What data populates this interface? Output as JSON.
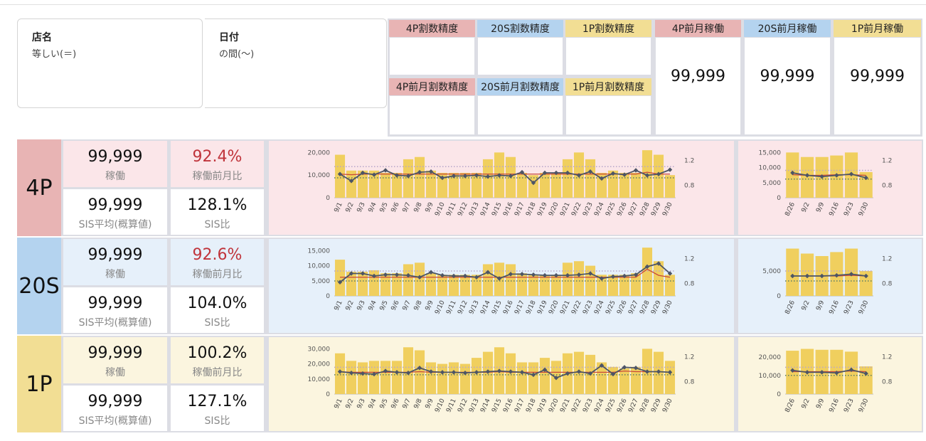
{
  "filters": [
    {
      "title": "店名",
      "sub": "等しい(＝)"
    },
    {
      "title": "日付",
      "sub": "の間(〜)"
    }
  ],
  "kpi_headers": {
    "p4_acc": "4P割数精度",
    "s20_acc": "20S割数精度",
    "p1_acc": "1P割数精度",
    "p4_prev_acc": "4P前月割数精度",
    "s20_prev_acc": "20S前月割数精度",
    "p1_prev_acc": "1P前月割数精度",
    "p4_prev_op": "4P前月稼働",
    "s20_prev_op": "20S前月稼働",
    "p1_prev_op": "1P前月稼働"
  },
  "kpi_values": {
    "p4_prev_op": "99,999",
    "s20_prev_op": "99,999",
    "p1_prev_op": "99,999"
  },
  "colors": {
    "p4": "#e8b4b4",
    "s20": "#b4d3ef",
    "p1": "#f2de94",
    "p4_bg": "#fbe6e9",
    "s20_bg": "#e6f0fa",
    "p1_bg": "#fbf5df",
    "bar": "#f0cf5e",
    "line": "#4d5566",
    "redline": "#c8483a"
  },
  "rows": [
    {
      "key": "p4",
      "label": "4P",
      "op_value": "99,999",
      "op_label": "稼働",
      "mom_value": "92.4%",
      "mom_label": "稼働前月比",
      "mom_red": true,
      "sis_value": "99,999",
      "sis_label": "SIS平均(概算値)",
      "sisr_value": "128.1%",
      "sisr_label": "SIS比"
    },
    {
      "key": "s20",
      "label": "20S",
      "op_value": "99,999",
      "op_label": "稼働",
      "mom_value": "92.6%",
      "mom_label": "稼働前月比",
      "mom_red": true,
      "sis_value": "99,999",
      "sis_label": "SIS平均(概算値)",
      "sisr_value": "104.0%",
      "sisr_label": "SIS比"
    },
    {
      "key": "p1",
      "label": "1P",
      "op_value": "99,999",
      "op_label": "稼働",
      "mom_value": "100.2%",
      "mom_label": "稼働前月比",
      "mom_red": false,
      "sis_value": "99,999",
      "sis_label": "SIS平均(概算値)",
      "sisr_value": "127.1%",
      "sisr_label": "SIS比"
    }
  ],
  "chart_data": [
    {
      "id": "p4_daily",
      "type": "bar",
      "categories": [
        "9/1",
        "9/2",
        "9/3",
        "9/4",
        "9/5",
        "9/6",
        "9/7",
        "9/8",
        "9/9",
        "9/10",
        "9/11",
        "9/12",
        "9/13",
        "9/14",
        "9/15",
        "9/16",
        "9/17",
        "9/18",
        "9/19",
        "9/20",
        "9/21",
        "9/22",
        "9/23",
        "9/24",
        "9/25",
        "9/26",
        "9/27",
        "9/28",
        "9/29",
        "9/30"
      ],
      "values": [
        19000,
        12000,
        12000,
        12000,
        11000,
        11000,
        17000,
        18000,
        12000,
        11000,
        11000,
        11000,
        11000,
        17000,
        20000,
        18000,
        11000,
        10000,
        11000,
        11000,
        17000,
        20000,
        17000,
        11000,
        12000,
        11000,
        11000,
        21000,
        19000,
        10000
      ],
      "ylim": [
        0,
        22000
      ],
      "yticks": [
        0,
        10000,
        20000
      ],
      "y_tick_labels": [
        "0",
        "10,000",
        "20,000"
      ],
      "y2lim": [
        0.6,
        1.4
      ],
      "y2ticks": [
        0.8,
        1.2
      ],
      "y2_tick_labels": [
        "0.8",
        "1.2"
      ],
      "ratio": [
        0.98,
        0.87,
        1.0,
        0.97,
        1.04,
        0.96,
        0.95,
        1.01,
        1.02,
        0.92,
        0.95,
        0.95,
        0.96,
        0.94,
        0.96,
        0.95,
        1.01,
        0.84,
        1.0,
        1.0,
        1.0,
        0.96,
        1.02,
        0.91,
        0.99,
        0.97,
        1.04,
        0.96,
        0.98,
        1.05
      ],
      "avg_line": [
        0.98,
        0.97,
        0.98,
        0.98,
        0.98,
        0.98,
        0.98,
        0.98,
        0.98,
        0.98,
        0.98,
        0.98,
        0.98,
        0.98,
        0.98,
        0.98,
        0.98,
        0.98,
        0.98,
        0.98,
        0.98,
        0.98,
        0.98,
        0.98,
        0.98,
        0.98,
        0.98,
        1.01,
        0.98,
        0.98
      ],
      "ref_upper": 1.1,
      "ref_lower": 0.92
    },
    {
      "id": "p4_weekly",
      "type": "bar",
      "categories": [
        "8/26",
        "9/2",
        "9/9",
        "9/16",
        "9/23",
        "9/30"
      ],
      "values": [
        15000,
        13500,
        13500,
        14000,
        15000,
        8500
      ],
      "ylim": [
        0,
        16500
      ],
      "yticks": [
        0,
        5000,
        10000,
        15000
      ],
      "y_tick_labels": [
        "0",
        "5,000",
        "10,000",
        "15,000"
      ],
      "y2lim": [
        0.6,
        1.4
      ],
      "y2ticks": [
        0.8,
        1.2
      ],
      "y2_tick_labels": [
        "0.8",
        "1.2"
      ],
      "ratio": [
        1.0,
        0.96,
        0.94,
        0.96,
        0.98,
        0.92
      ],
      "avg_line": [
        0.97,
        0.96,
        0.96,
        0.97,
        0.97,
        0.96
      ],
      "ref_upper": 1.04,
      "ref_lower": 0.9
    },
    {
      "id": "s20_daily",
      "type": "bar",
      "categories": [
        "9/1",
        "9/2",
        "9/3",
        "9/4",
        "9/5",
        "9/6",
        "9/7",
        "9/8",
        "9/9",
        "9/10",
        "9/11",
        "9/12",
        "9/13",
        "9/14",
        "9/15",
        "9/16",
        "9/17",
        "9/18",
        "9/19",
        "9/20",
        "9/21",
        "9/22",
        "9/23",
        "9/24",
        "9/25",
        "9/26",
        "9/27",
        "9/28",
        "9/29",
        "9/30"
      ],
      "values": [
        12000,
        8000,
        8000,
        8500,
        7500,
        7500,
        10500,
        11000,
        7500,
        7000,
        7000,
        7000,
        7000,
        10500,
        11000,
        10500,
        7500,
        7000,
        7000,
        7000,
        11000,
        11500,
        10000,
        7000,
        7000,
        7000,
        7500,
        16000,
        11500,
        7000
      ],
      "ylim": [
        0,
        16500
      ],
      "yticks": [
        0,
        5000,
        10000,
        15000
      ],
      "y_tick_labels": [
        "0",
        "5,000",
        "10,000",
        "15,000"
      ],
      "y2lim": [
        0.6,
        1.4
      ],
      "y2ticks": [
        0.8,
        1.2
      ],
      "y2_tick_labels": [
        "0.8",
        "1.2"
      ],
      "ratio": [
        0.82,
        0.96,
        0.96,
        0.92,
        0.94,
        0.94,
        0.93,
        0.9,
        0.98,
        0.93,
        0.92,
        0.92,
        0.9,
        0.98,
        0.88,
        0.95,
        0.95,
        0.94,
        0.93,
        0.93,
        0.93,
        0.94,
        0.96,
        0.88,
        0.91,
        0.92,
        0.94,
        1.07,
        1.12,
        0.96
      ],
      "avg_line": [
        0.9,
        0.9,
        0.9,
        0.9,
        0.9,
        0.9,
        0.9,
        0.9,
        0.9,
        0.9,
        0.9,
        0.9,
        0.9,
        0.9,
        0.9,
        0.9,
        0.9,
        0.9,
        0.9,
        0.9,
        0.9,
        0.9,
        0.9,
        0.9,
        0.9,
        0.9,
        0.9,
        1.03,
        0.93,
        0.9
      ],
      "ref_upper": 1.0,
      "ref_lower": 0.84
    },
    {
      "id": "s20_weekly",
      "type": "bar",
      "categories": [
        "8/26",
        "9/2",
        "9/9",
        "9/16",
        "9/23",
        "9/30"
      ],
      "values": [
        9500,
        8500,
        8000,
        8800,
        9500,
        5000
      ],
      "ylim": [
        0,
        10000
      ],
      "yticks": [
        0,
        5000
      ],
      "y_tick_labels": [
        "0",
        "5,000"
      ],
      "y2lim": [
        0.6,
        1.4
      ],
      "y2ticks": [
        0.8,
        1.2
      ],
      "y2_tick_labels": [
        "0.8",
        "1.2"
      ],
      "ratio": [
        0.92,
        0.92,
        0.92,
        0.93,
        0.95,
        0.92
      ],
      "avg_line": [
        0.92,
        0.92,
        0.92,
        0.92,
        0.93,
        0.92
      ],
      "ref_upper": 1.0,
      "ref_lower": 0.84
    },
    {
      "id": "p1_daily",
      "type": "bar",
      "categories": [
        "9/1",
        "9/2",
        "9/3",
        "9/4",
        "9/5",
        "9/6",
        "9/7",
        "9/8",
        "9/9",
        "9/10",
        "9/11",
        "9/12",
        "9/13",
        "9/14",
        "9/15",
        "9/16",
        "9/17",
        "9/18",
        "9/19",
        "9/20",
        "9/21",
        "9/22",
        "9/23",
        "9/24",
        "9/25",
        "9/26",
        "9/27",
        "9/28",
        "9/29",
        "9/30"
      ],
      "values": [
        27000,
        22000,
        21000,
        22000,
        22000,
        22000,
        31000,
        29000,
        21000,
        20000,
        21000,
        20000,
        24000,
        28000,
        31000,
        27000,
        21000,
        21000,
        24000,
        22000,
        27000,
        28000,
        26000,
        21000,
        18000,
        17000,
        18000,
        30000,
        28000,
        22000
      ],
      "ylim": [
        0,
        33000
      ],
      "yticks": [
        0,
        10000,
        20000,
        30000
      ],
      "y_tick_labels": [
        "0",
        "10,000",
        "20,000",
        "30,000"
      ],
      "y2lim": [
        0.6,
        1.4
      ],
      "y2ticks": [
        0.8,
        1.2
      ],
      "y2_tick_labels": [
        "0.8",
        "1.2"
      ],
      "ratio": [
        0.96,
        0.94,
        0.93,
        0.92,
        0.97,
        0.95,
        0.94,
        1.02,
        0.96,
        0.95,
        0.95,
        0.94,
        0.95,
        0.96,
        0.97,
        0.96,
        0.95,
        0.91,
        0.99,
        0.86,
        0.93,
        0.96,
        0.93,
        1.06,
        0.92,
        1.03,
        1.02,
        0.96,
        0.96,
        0.95
      ],
      "avg_line": [
        0.96,
        0.95,
        0.95,
        0.95,
        0.95,
        0.95,
        0.95,
        0.96,
        0.95,
        0.95,
        0.95,
        0.95,
        0.95,
        0.95,
        0.96,
        0.95,
        0.95,
        0.95,
        0.95,
        0.95,
        0.95,
        0.95,
        0.95,
        0.95,
        0.95,
        0.97,
        0.96,
        0.96,
        0.96,
        0.95
      ],
      "ref_upper": 1.03,
      "ref_lower": 0.91
    },
    {
      "id": "p1_weekly",
      "type": "bar",
      "categories": [
        "8/26",
        "9/2",
        "9/9",
        "9/16",
        "9/23",
        "9/30"
      ],
      "values": [
        23500,
        24500,
        24000,
        24000,
        23000,
        15000
      ],
      "ylim": [
        0,
        27000
      ],
      "yticks": [
        0,
        10000,
        20000
      ],
      "y_tick_labels": [
        "0",
        "10,000",
        "20,000"
      ],
      "y2lim": [
        0.6,
        1.4
      ],
      "y2ticks": [
        0.8,
        1.2
      ],
      "y2_tick_labels": [
        "0.8",
        "1.2"
      ],
      "ratio": [
        0.98,
        0.95,
        0.95,
        0.94,
        0.99,
        0.93
      ],
      "avg_line": [
        0.96,
        0.96,
        0.96,
        0.96,
        0.97,
        0.96
      ],
      "ref_upper": 1.03,
      "ref_lower": 0.9
    }
  ]
}
